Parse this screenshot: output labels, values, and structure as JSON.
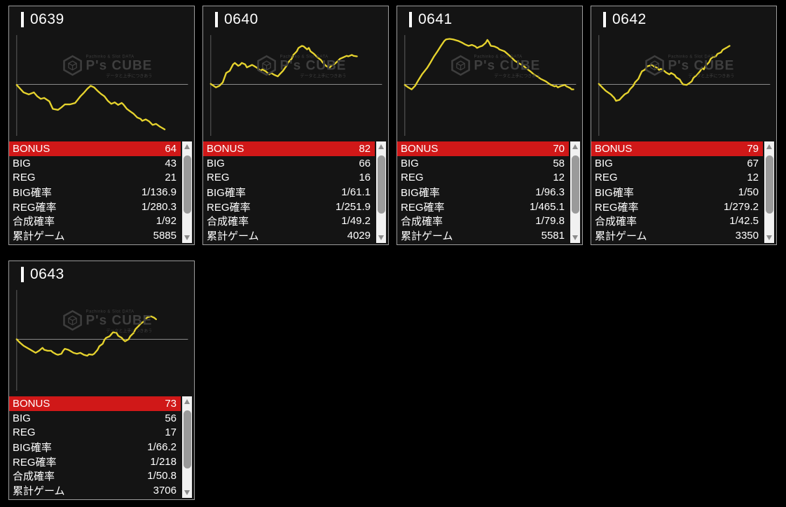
{
  "colors": {
    "page_bg": "#000000",
    "panel_bg": "#141414",
    "panel_border": "#9c9c9c",
    "accent_red": "#d01818",
    "line_yellow": "#e6d32e",
    "baseline_gray": "#8a8a8a",
    "axis_gray": "#5a5a5a",
    "scrollbar_track": "#f1f1f1",
    "scrollbar_thumb": "#9a9a9a",
    "scrollbar_arrow": "#8b8b8b",
    "watermark_gray": "#3e3e3e",
    "text_white": "#ffffff"
  },
  "watermark": {
    "brand": "P's CUBE",
    "top_text": "Pachinko & Slot DATA",
    "bottom_text": "データと上手につきあう"
  },
  "table_labels": [
    "BONUS",
    "BIG",
    "REG",
    "BIG確率",
    "REG確率",
    "合成確率",
    "累計ゲーム"
  ],
  "scrollbar": {
    "thumb_top_pct": 14,
    "thumb_height_pct": 57
  },
  "panels": [
    {
      "id": "0639",
      "values": [
        "64",
        "43",
        "21",
        "1/136.9",
        "1/280.3",
        "1/92",
        "5885"
      ],
      "graph": [
        [
          0,
          -1
        ],
        [
          4,
          -16
        ],
        [
          7,
          -20
        ],
        [
          10,
          -16
        ],
        [
          12,
          -24
        ],
        [
          14,
          -29
        ],
        [
          16,
          -27
        ],
        [
          19,
          -34
        ],
        [
          21,
          -49
        ],
        [
          24,
          -51
        ],
        [
          26,
          -46
        ],
        [
          28,
          -40
        ],
        [
          31,
          -40
        ],
        [
          34,
          -37
        ],
        [
          37,
          -24
        ],
        [
          39,
          -17
        ],
        [
          41,
          -9
        ],
        [
          43,
          -3
        ],
        [
          45,
          -6
        ],
        [
          47,
          -13
        ],
        [
          49,
          -19
        ],
        [
          51,
          -24
        ],
        [
          53,
          -33
        ],
        [
          55,
          -39
        ],
        [
          57,
          -36
        ],
        [
          59,
          -41
        ],
        [
          61,
          -37
        ],
        [
          62,
          -40
        ],
        [
          64,
          -49
        ],
        [
          66,
          -54
        ],
        [
          68,
          -59
        ],
        [
          70,
          -66
        ],
        [
          72,
          -69
        ],
        [
          73,
          -73
        ],
        [
          75,
          -70
        ],
        [
          77,
          -74
        ],
        [
          79,
          -81
        ],
        [
          81,
          -79
        ],
        [
          83,
          -84
        ],
        [
          84,
          -86
        ],
        [
          86,
          -90
        ]
      ]
    },
    {
      "id": "0640",
      "values": [
        "82",
        "66",
        "16",
        "1/61.1",
        "1/251.9",
        "1/49.2",
        "4029"
      ],
      "graph": [
        [
          0,
          1
        ],
        [
          3,
          -6
        ],
        [
          5,
          -3
        ],
        [
          7,
          4
        ],
        [
          9,
          23
        ],
        [
          11,
          27
        ],
        [
          13,
          40
        ],
        [
          14,
          43
        ],
        [
          16,
          37
        ],
        [
          17,
          39
        ],
        [
          18,
          43
        ],
        [
          20,
          40
        ],
        [
          21,
          34
        ],
        [
          24,
          39
        ],
        [
          25,
          37
        ],
        [
          27,
          33
        ],
        [
          29,
          27
        ],
        [
          30,
          30
        ],
        [
          32,
          26
        ],
        [
          34,
          20
        ],
        [
          35,
          23
        ],
        [
          37,
          19
        ],
        [
          39,
          16
        ],
        [
          40,
          20
        ],
        [
          42,
          27
        ],
        [
          44,
          37
        ],
        [
          45,
          44
        ],
        [
          47,
          51
        ],
        [
          48,
          59
        ],
        [
          50,
          66
        ],
        [
          51,
          73
        ],
        [
          53,
          77
        ],
        [
          54,
          76
        ],
        [
          56,
          70
        ],
        [
          57,
          73
        ],
        [
          58,
          66
        ],
        [
          60,
          61
        ],
        [
          62,
          54
        ],
        [
          64,
          49
        ],
        [
          65,
          44
        ],
        [
          67,
          37
        ],
        [
          69,
          33
        ],
        [
          70,
          37
        ],
        [
          72,
          41
        ],
        [
          74,
          47
        ],
        [
          75,
          51
        ],
        [
          77,
          54
        ],
        [
          79,
          57
        ],
        [
          80,
          56
        ],
        [
          82,
          59
        ],
        [
          83,
          57
        ],
        [
          85,
          56
        ]
      ]
    },
    {
      "id": "0641",
      "values": [
        "70",
        "58",
        "12",
        "1/96.3",
        "1/465.1",
        "1/79.8",
        "5581"
      ],
      "graph": [
        [
          0,
          -1
        ],
        [
          2,
          -6
        ],
        [
          4,
          -10
        ],
        [
          6,
          -3
        ],
        [
          8,
          9
        ],
        [
          10,
          20
        ],
        [
          13,
          33
        ],
        [
          15,
          44
        ],
        [
          17,
          56
        ],
        [
          19,
          66
        ],
        [
          21,
          77
        ],
        [
          23,
          87
        ],
        [
          24,
          90
        ],
        [
          26,
          91
        ],
        [
          28,
          90
        ],
        [
          31,
          87
        ],
        [
          33,
          84
        ],
        [
          35,
          80
        ],
        [
          37,
          77
        ],
        [
          39,
          79
        ],
        [
          41,
          76
        ],
        [
          42,
          73
        ],
        [
          44,
          76
        ],
        [
          45,
          77
        ],
        [
          47,
          83
        ],
        [
          48,
          89
        ],
        [
          49,
          84
        ],
        [
          50,
          77
        ],
        [
          52,
          76
        ],
        [
          54,
          73
        ],
        [
          55,
          70
        ],
        [
          58,
          66
        ],
        [
          60,
          60
        ],
        [
          62,
          54
        ],
        [
          64,
          47
        ],
        [
          66,
          43
        ],
        [
          69,
          37
        ],
        [
          71,
          31
        ],
        [
          73,
          26
        ],
        [
          75,
          20
        ],
        [
          77,
          16
        ],
        [
          79,
          11
        ],
        [
          82,
          6
        ],
        [
          84,
          1
        ],
        [
          85,
          -1
        ],
        [
          87,
          -4
        ],
        [
          88,
          -3
        ],
        [
          89,
          -6
        ],
        [
          91,
          -3
        ],
        [
          93,
          -1
        ],
        [
          94,
          -4
        ],
        [
          96,
          -7
        ],
        [
          97,
          -10
        ],
        [
          98,
          -10
        ]
      ]
    },
    {
      "id": "0642",
      "values": [
        "79",
        "67",
        "12",
        "1/50",
        "1/279.2",
        "1/42.5",
        "3350"
      ],
      "graph": [
        [
          0,
          1
        ],
        [
          2,
          -6
        ],
        [
          4,
          -13
        ],
        [
          7,
          -20
        ],
        [
          9,
          -27
        ],
        [
          10,
          -33
        ],
        [
          12,
          -31
        ],
        [
          13,
          -27
        ],
        [
          15,
          -20
        ],
        [
          17,
          -16
        ],
        [
          18,
          -10
        ],
        [
          20,
          -3
        ],
        [
          21,
          4
        ],
        [
          23,
          11
        ],
        [
          24,
          19
        ],
        [
          25,
          26
        ],
        [
          27,
          30
        ],
        [
          28,
          36
        ],
        [
          31,
          39
        ],
        [
          32,
          36
        ],
        [
          34,
          33
        ],
        [
          35,
          29
        ],
        [
          36,
          31
        ],
        [
          38,
          27
        ],
        [
          39,
          24
        ],
        [
          41,
          20
        ],
        [
          42,
          23
        ],
        [
          44,
          19
        ],
        [
          45,
          14
        ],
        [
          47,
          10
        ],
        [
          48,
          4
        ],
        [
          49,
          0
        ],
        [
          51,
          -1
        ],
        [
          52,
          1
        ],
        [
          54,
          6
        ],
        [
          55,
          13
        ],
        [
          57,
          19
        ],
        [
          58,
          23
        ],
        [
          59,
          27
        ],
        [
          60,
          33
        ],
        [
          61,
          30
        ],
        [
          62,
          37
        ],
        [
          64,
          44
        ],
        [
          65,
          51
        ],
        [
          66,
          54
        ],
        [
          68,
          56
        ],
        [
          69,
          61
        ],
        [
          71,
          64
        ],
        [
          72,
          69
        ],
        [
          74,
          73
        ],
        [
          76,
          77
        ]
      ]
    },
    {
      "id": "0643",
      "values": [
        "73",
        "56",
        "17",
        "1/66.2",
        "1/218",
        "1/50.8",
        "3706"
      ],
      "graph": [
        [
          0,
          0
        ],
        [
          2,
          -7
        ],
        [
          4,
          -13
        ],
        [
          7,
          -19
        ],
        [
          9,
          -23
        ],
        [
          11,
          -27
        ],
        [
          13,
          -23
        ],
        [
          15,
          -17
        ],
        [
          16,
          -21
        ],
        [
          18,
          -23
        ],
        [
          20,
          -23
        ],
        [
          21,
          -26
        ],
        [
          23,
          -30
        ],
        [
          24,
          -31
        ],
        [
          26,
          -29
        ],
        [
          27,
          -23
        ],
        [
          28,
          -19
        ],
        [
          30,
          -21
        ],
        [
          31,
          -23
        ],
        [
          33,
          -27
        ],
        [
          35,
          -29
        ],
        [
          37,
          -27
        ],
        [
          38,
          -29
        ],
        [
          39,
          -31
        ],
        [
          41,
          -33
        ],
        [
          42,
          -30
        ],
        [
          44,
          -31
        ],
        [
          45,
          -29
        ],
        [
          47,
          -21
        ],
        [
          48,
          -14
        ],
        [
          50,
          -9
        ],
        [
          51,
          -1
        ],
        [
          52,
          3
        ],
        [
          54,
          6
        ],
        [
          55,
          10
        ],
        [
          56,
          14
        ],
        [
          58,
          13
        ],
        [
          59,
          7
        ],
        [
          61,
          3
        ],
        [
          62,
          -1
        ],
        [
          63,
          -4
        ],
        [
          65,
          0
        ],
        [
          66,
          6
        ],
        [
          68,
          13
        ],
        [
          69,
          20
        ],
        [
          71,
          27
        ],
        [
          72,
          31
        ],
        [
          74,
          36
        ],
        [
          75,
          41
        ],
        [
          76,
          44
        ],
        [
          78,
          46
        ],
        [
          80,
          43
        ],
        [
          81,
          40
        ]
      ]
    }
  ]
}
